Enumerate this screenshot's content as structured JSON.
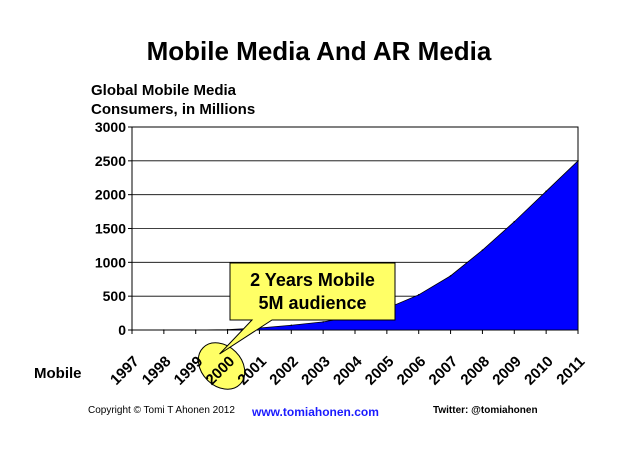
{
  "slide_title": "Mobile Media And AR Media",
  "chart_data": {
    "type": "area",
    "title_lines": [
      "Global Mobile Media",
      "Consumers, in Millions"
    ],
    "row_label": "Mobile",
    "categories": [
      "1997",
      "1998",
      "1999",
      "2000",
      "2001",
      "2002",
      "2003",
      "2004",
      "2005",
      "2006",
      "2007",
      "2008",
      "2009",
      "2010",
      "2011"
    ],
    "series": [
      {
        "values": [
          0,
          0,
          0,
          5,
          30,
          70,
          120,
          200,
          320,
          520,
          800,
          1180,
          1600,
          2050,
          2500
        ],
        "color": "#0000ff"
      }
    ],
    "ylim": [
      0,
      3000
    ],
    "yticks": [
      0,
      500,
      1000,
      1500,
      2000,
      2500,
      3000
    ],
    "ytick_labels": [
      "0",
      "500",
      "1000",
      "1500",
      "2000",
      "2500",
      "3000"
    ],
    "grid": true,
    "highlight_category": "2000",
    "highlight_color": "#ffff66",
    "callout": {
      "lines": [
        "2 Years Mobile",
        "5M audience"
      ],
      "fill": "#ffff66"
    }
  },
  "footer": {
    "copyright": "Copyright © Tomi T Ahonen 2012",
    "url": "www.tomiahonen.com",
    "twitter": "Twitter: @tomiahonen"
  }
}
